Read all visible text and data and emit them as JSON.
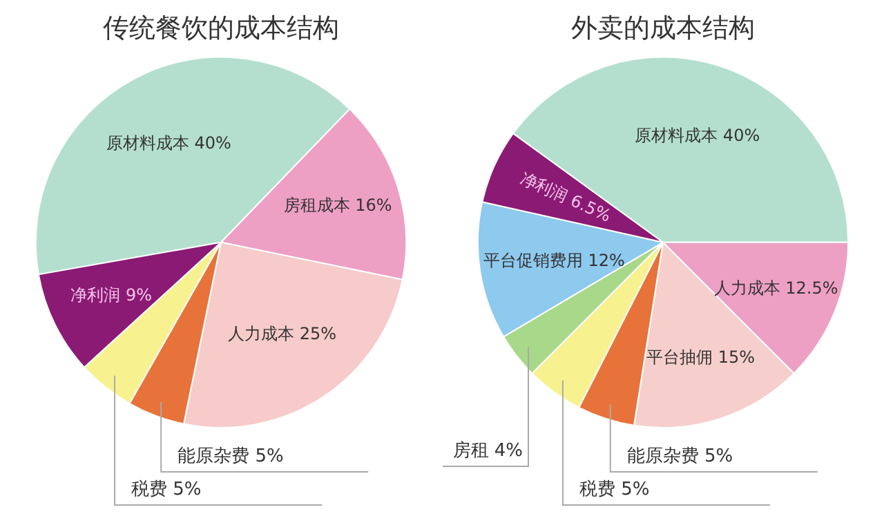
{
  "chart_data": [
    {
      "type": "pie",
      "title": "传统餐饮的成本结构",
      "categories": [
        "原材料成本",
        "房租成本",
        "人力成本",
        "能原杂费",
        "税费",
        "净利润"
      ],
      "values": [
        40,
        16,
        25,
        5,
        5,
        9
      ],
      "value_labels": [
        "40%",
        "16%",
        "25%",
        "5%",
        "5%",
        "9%"
      ],
      "colors": [
        "#b4dfcf",
        "#ee9fc4",
        "#f6cbc9",
        "#e8733a",
        "#f7f28f",
        "#8b1a74"
      ]
    },
    {
      "type": "pie",
      "title": "外卖的成本结构",
      "categories": [
        "原材料成本",
        "人力成本",
        "平台抽佣",
        "能原杂费",
        "税费",
        "房租",
        "平台促销费用",
        "净利润"
      ],
      "values": [
        40,
        12.5,
        15,
        5,
        5,
        4,
        12,
        6.5
      ],
      "value_labels": [
        "40%",
        "12.5%",
        "15%",
        "5%",
        "5%",
        "4%",
        "12%",
        "6.5%"
      ],
      "colors": [
        "#b4dfcf",
        "#ee9fc4",
        "#f6cfcc",
        "#e8733a",
        "#f7f28f",
        "#a8d88a",
        "#8ec9ee",
        "#8b1a74"
      ]
    }
  ]
}
